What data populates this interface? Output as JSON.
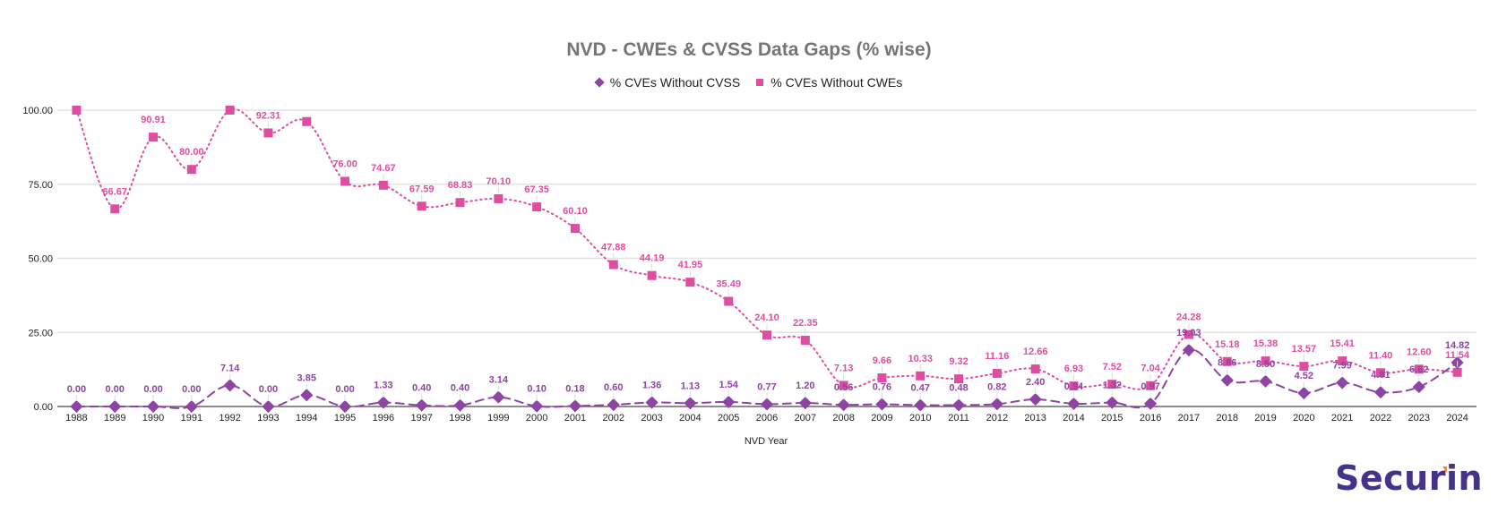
{
  "chart_data": {
    "type": "line",
    "title": "NVD - CWEs & CVSS Data Gaps (% wise)",
    "xlabel": "NVD Year",
    "ylabel": "",
    "ylim": [
      0,
      100
    ],
    "yticks": [
      "0.00",
      "25.00",
      "50.00",
      "75.00",
      "100.00"
    ],
    "ytick_values": [
      0,
      25,
      50,
      75,
      100
    ],
    "grid": true,
    "legend_position": "top-center",
    "categories": [
      "1988",
      "1989",
      "1990",
      "1991",
      "1992",
      "1993",
      "1994",
      "1995",
      "1996",
      "1997",
      "1998",
      "1999",
      "2000",
      "2001",
      "2002",
      "2003",
      "2004",
      "2005",
      "2006",
      "2007",
      "2008",
      "2009",
      "2010",
      "2011",
      "2012",
      "2013",
      "2014",
      "2015",
      "2016",
      "2017",
      "2018",
      "2019",
      "2020",
      "2021",
      "2022",
      "2023",
      "2024"
    ],
    "series": [
      {
        "name": "% CVEs Without CVSS",
        "color": "#8e44a3",
        "marker": "diamond",
        "line_style": "dashed",
        "values": [
          0.0,
          0.0,
          0.0,
          0.0,
          7.14,
          0.0,
          3.85,
          0.0,
          1.33,
          0.4,
          0.4,
          3.14,
          0.1,
          0.18,
          0.6,
          1.36,
          1.13,
          1.54,
          0.77,
          1.2,
          0.56,
          0.76,
          0.47,
          0.48,
          0.82,
          2.4,
          0.94,
          1.32,
          0.97,
          19.03,
          8.86,
          8.5,
          4.52,
          7.99,
          4.81,
          6.62,
          14.82
        ],
        "labels": [
          "0.00",
          "0.00",
          "0.00",
          "0.00",
          "7.14",
          "0.00",
          "3.85",
          "0.00",
          "1.33",
          "0.40",
          "0.40",
          "3.14",
          "0.10",
          "0.18",
          "0.60",
          "1.36",
          "1.13",
          "1.54",
          "0.77",
          "1.20",
          "0.56",
          "0.76",
          "0.47",
          "0.48",
          "0.82",
          "2.40",
          "0.94",
          "1.32",
          "0.97",
          "19.03",
          "8.86",
          "8.50",
          "4.52",
          "7.99",
          "4.81",
          "6.62",
          "14.82"
        ]
      },
      {
        "name": "% CVEs Without CWEs",
        "color": "#de4ea0",
        "marker": "square",
        "line_style": "dotted",
        "values": [
          100.0,
          66.67,
          90.91,
          80.0,
          100.0,
          92.31,
          96.15,
          76.0,
          74.67,
          67.59,
          68.83,
          70.1,
          67.35,
          60.1,
          47.88,
          44.19,
          41.95,
          35.49,
          24.1,
          22.35,
          7.13,
          9.66,
          10.33,
          9.32,
          11.16,
          12.66,
          6.93,
          7.52,
          7.04,
          24.28,
          15.18,
          15.38,
          13.57,
          15.41,
          11.4,
          12.6,
          11.54
        ],
        "labels": [
          "",
          "66.67",
          "90.91",
          "80.00",
          "",
          "92.31",
          "",
          "76.00",
          "74.67",
          "67.59",
          "68.83",
          "70.10",
          "67.35",
          "60.10",
          "47.88",
          "44.19",
          "41.95",
          "35.49",
          "24.10",
          "22.35",
          "7.13",
          "9.66",
          "10.33",
          "9.32",
          "11.16",
          "12.66",
          "6.93",
          "7.52",
          "7.04",
          "24.28",
          "15.18",
          "15.38",
          "13.57",
          "15.41",
          "11.40",
          "12.60",
          "11.54"
        ]
      }
    ]
  },
  "brand": {
    "logo_text_main": "Secu",
    "logo_text_accent": "r",
    "logo_text_end": "in",
    "color": "#45338a",
    "accent_color": "#f08a24"
  }
}
